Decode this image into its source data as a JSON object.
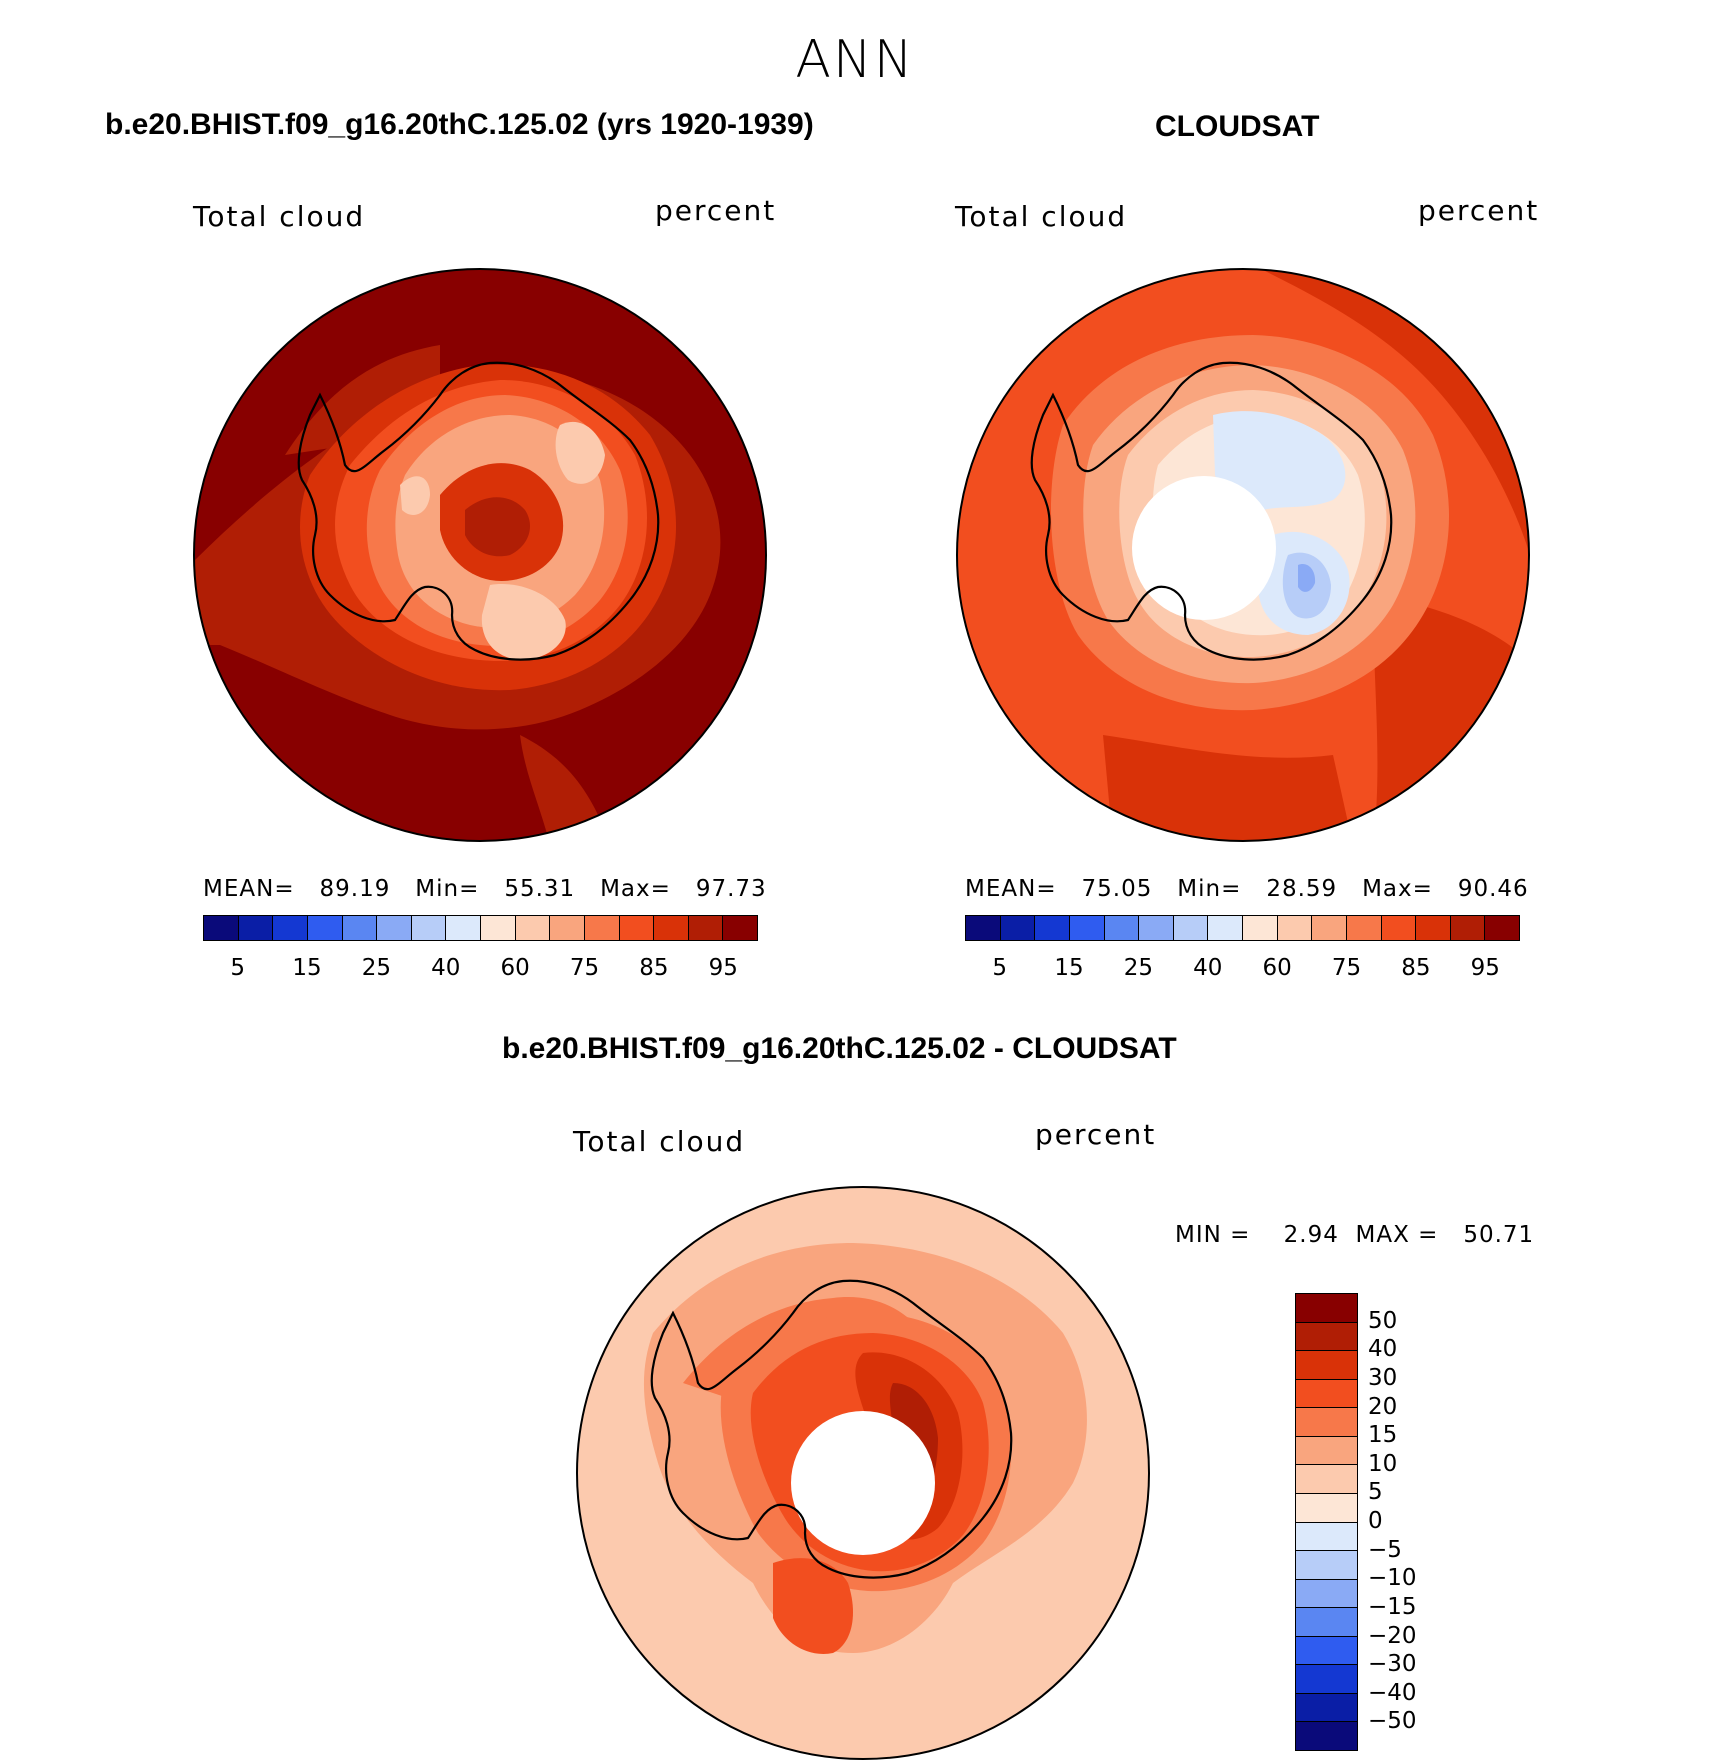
{
  "season": "ANN",
  "panels": {
    "model": {
      "title": "b.e20.BHIST.f09_g16.20thC.125.02 (yrs 1920-1939)",
      "variable": "Total cloud",
      "units": "percent",
      "stats": "MEAN=   89.19   Min=   55.31   Max=   97.73"
    },
    "obs": {
      "title": "CLOUDSAT",
      "variable": "Total cloud",
      "units": "percent",
      "stats": "MEAN=   75.05   Min=   28.59   Max=   90.46"
    },
    "diff": {
      "title": "b.e20.BHIST.f09_g16.20thC.125.02 - CLOUDSAT",
      "variable": "Total cloud",
      "units": "percent",
      "stats": "MIN =    2.94  MAX =   50.71"
    }
  },
  "colorbar_main": {
    "colors": [
      "#0a0a7a",
      "#0a1ea6",
      "#1438d2",
      "#2f5cf0",
      "#5a86f2",
      "#8aaaf5",
      "#b7cdf8",
      "#dce9fb",
      "#fde6d6",
      "#fccaae",
      "#f9a57e",
      "#f7784a",
      "#f24e1f",
      "#d93208",
      "#b01e05",
      "#880000"
    ],
    "labels": [
      "5",
      "15",
      "25",
      "40",
      "60",
      "75",
      "85",
      "95"
    ]
  },
  "colorbar_diff": {
    "colors": [
      "#880000",
      "#b01e05",
      "#d93208",
      "#f24e1f",
      "#f7784a",
      "#f9a57e",
      "#fccaae",
      "#fde6d6",
      "#dce9fb",
      "#b7cdf8",
      "#8aaaf5",
      "#5a86f2",
      "#2f5cf0",
      "#1438d2",
      "#0a1ea6",
      "#0a0a7a"
    ],
    "labels": [
      "50",
      "40",
      "30",
      "20",
      "15",
      "10",
      "5",
      "0",
      "−5",
      "−10",
      "−15",
      "−20",
      "−30",
      "−40",
      "−50"
    ]
  }
}
